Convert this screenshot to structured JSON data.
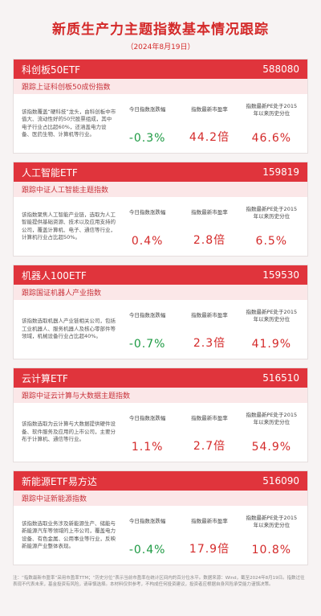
{
  "header": {
    "title": "新质生产力主题指数基本情况跟踪",
    "subtitle": "（2024年8月19日）"
  },
  "metric_labels": [
    "今日指数涨跌幅",
    "指数最新市盈率",
    "指数最新PE处于2015年以来历史分位"
  ],
  "cards": [
    {
      "name": "科创板50ETF",
      "code": "588080",
      "tracking": "跟踪上证科创板50成份指数",
      "description": "该指数覆盖“硬科技”龙头，由科创板中市值大、流动性好的50只股票组成，其中电子行业占比超60%，还涵盖电力设备、医药生物、计算机等行业。",
      "values": [
        "-0.3%",
        "44.2倍",
        "46.6%"
      ]
    },
    {
      "name": "人工智能ETF",
      "code": "159819",
      "tracking": "跟踪中证人工智能主题指数",
      "description": "该指数聚焦人工智能产业链，选取为人工智能提供基础资源、技术以及应用支持的公司，覆盖计算机、电子、通信等行业，计算机行业占比超50%。",
      "values": [
        "0.4%",
        "2.8倍",
        "6.5%"
      ]
    },
    {
      "name": "机器人100ETF",
      "code": "159530",
      "tracking": "跟踪国证机器人产业指数",
      "description": "该指数选取机器人产业链相关公司，包括工业机器人、服务机器人及核心零部件等领域，机械设备行业占比超40%。",
      "values": [
        "-0.7%",
        "2.3倍",
        "41.9%"
      ]
    },
    {
      "name": "云计算ETF",
      "code": "516510",
      "tracking": "跟踪中证云计算与大数据主题指数",
      "description": "该指数选取为云计算与大数据提供硬件设备、软件服务及应用的上市公司，主要分布于计算机、通信等行业。",
      "values": [
        "1.1%",
        "2.7倍",
        "54.9%"
      ]
    },
    {
      "name": "新能源ETF易方达",
      "code": "516090",
      "tracking": "跟踪中证新能源指数",
      "description": "该指数选取业务涉及新能源生产、储能与新能源汽车等领域的上市公司，覆盖电力设备、有色金属、公用事业等行业，反映新能源产业整体表现。",
      "values": [
        "-0.4%",
        "17.9倍",
        "10.8%"
      ]
    }
  ],
  "footer": "注：“指数最新市盈率”采用市盈率TTM；“历史分位”表示当前市盈率在统计区间内的百分位水平。数据来源：Wind，截至2024年8月19日。指数过往表现不代表未来，基金投资有风险，请审慎选择。本材料仅供参考，不构成任何投资建议，投资者应根据自身风险承受能力谨慎决策。"
}
